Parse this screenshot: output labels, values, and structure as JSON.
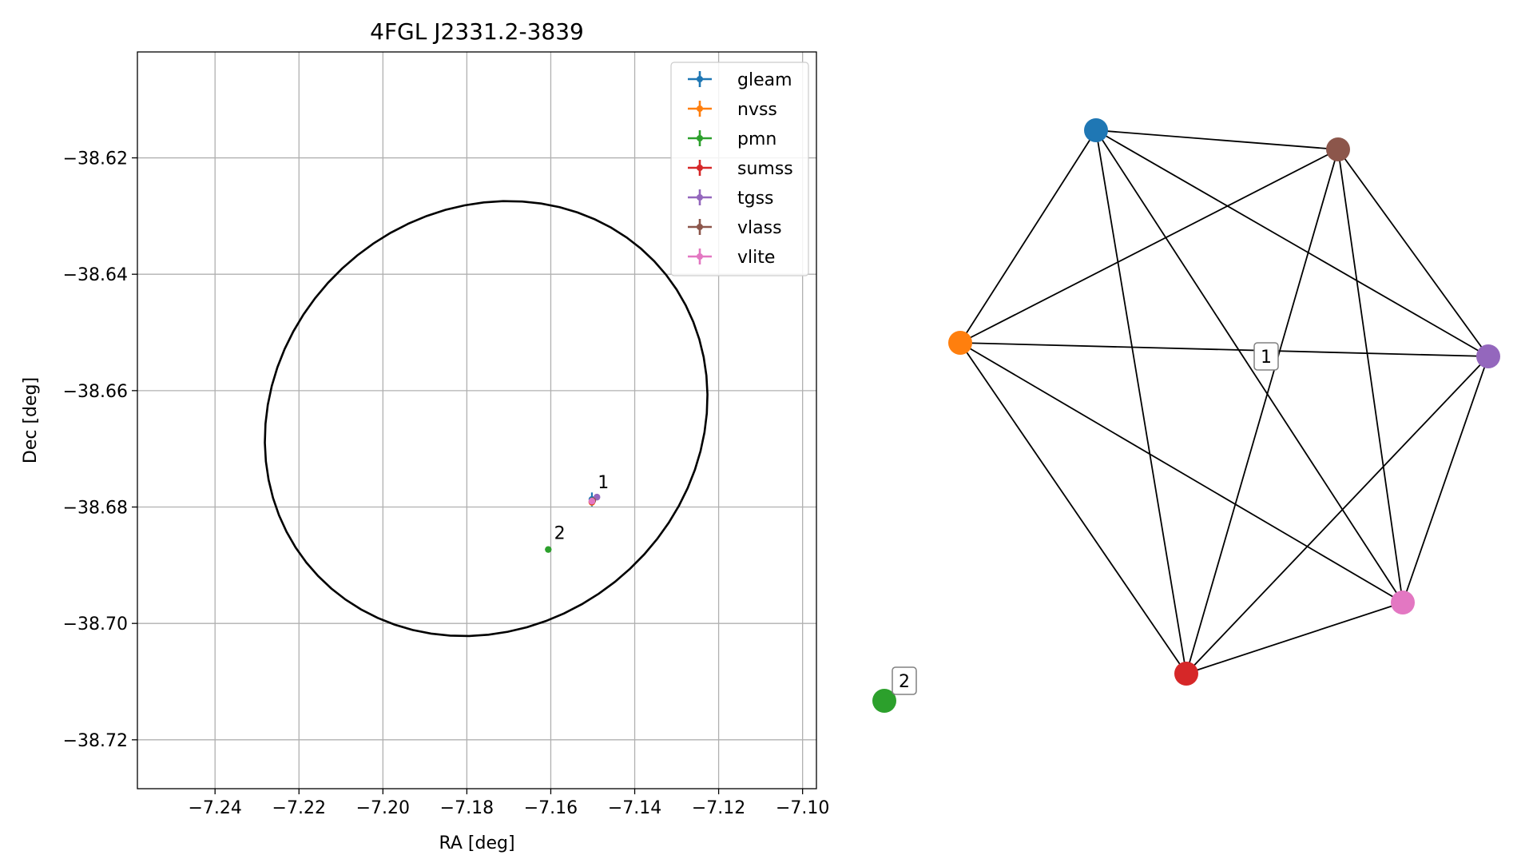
{
  "chart_data": [
    {
      "type": "scatter",
      "title": "4FGL J2331.2-3839",
      "xlabel": "RA [deg]",
      "ylabel": "Dec [deg]",
      "xlim": [
        -7.2585,
        -7.0967
      ],
      "ylim": [
        -38.7284,
        -38.6018
      ],
      "xticks": [
        -7.24,
        -7.22,
        -7.2,
        -7.18,
        -7.16,
        -7.14,
        -7.12,
        -7.1
      ],
      "xtick_labels": [
        "−7.24",
        "−7.22",
        "−7.20",
        "−7.18",
        "−7.16",
        "−7.14",
        "−7.12",
        "−7.10"
      ],
      "yticks": [
        -38.62,
        -38.64,
        -38.66,
        -38.68,
        -38.7,
        -38.72
      ],
      "ytick_labels": [
        "−38.62",
        "−38.64",
        "−38.66",
        "−38.68",
        "−38.70",
        "−38.72"
      ],
      "grid": true,
      "legend_position": "top-right",
      "ellipse": {
        "center": [
          -7.1754,
          -38.6648
        ],
        "semi_axes": [
          0.053,
          0.037
        ],
        "angle_deg": 8
      },
      "series": [
        {
          "name": "gleam",
          "color": "#1f77b4",
          "x": [
            -7.1502
          ],
          "y": [
            -38.6787
          ],
          "xerr": [
            0.0
          ],
          "yerr": [
            0.0012
          ]
        },
        {
          "name": "nvss",
          "color": "#ff7f0e",
          "x": [
            -7.1502
          ],
          "y": [
            -38.6792
          ],
          "xerr": [
            0.0003
          ],
          "yerr": [
            0.0003
          ]
        },
        {
          "name": "pmn",
          "color": "#2ca02c",
          "x": [
            -7.1606
          ],
          "y": [
            -38.6873
          ],
          "xerr": [
            0.0
          ],
          "yerr": [
            0.0
          ]
        },
        {
          "name": "sumss",
          "color": "#d62728",
          "x": [
            -7.1502
          ],
          "y": [
            -38.6791
          ],
          "xerr": [
            0.0003
          ],
          "yerr": [
            0.0003
          ]
        },
        {
          "name": "tgss",
          "color": "#9467bd",
          "x": [
            -7.149
          ],
          "y": [
            -38.6783
          ],
          "xerr": [
            0.0004
          ],
          "yerr": [
            0.0004
          ]
        },
        {
          "name": "vlass",
          "color": "#8c564b",
          "x": [
            -7.15
          ],
          "y": [
            -38.6789
          ],
          "xerr": [
            0.0001
          ],
          "yerr": [
            0.0001
          ]
        },
        {
          "name": "vlite",
          "color": "#e377c2",
          "x": [
            -7.1502
          ],
          "y": [
            -38.679
          ],
          "xerr": [
            0.0005
          ],
          "yerr": [
            0.0005
          ]
        }
      ],
      "annotations": [
        {
          "text": "1",
          "x": -7.1488,
          "y": -38.6768
        },
        {
          "text": "2",
          "x": -7.1592,
          "y": -38.6855
        }
      ]
    },
    {
      "type": "network",
      "nodes": [
        {
          "id": "gleam",
          "color": "#1f77b4"
        },
        {
          "id": "vlass",
          "color": "#8c564b"
        },
        {
          "id": "nvss",
          "color": "#ff7f0e"
        },
        {
          "id": "tgss",
          "color": "#9467bd"
        },
        {
          "id": "vlite",
          "color": "#e377c2"
        },
        {
          "id": "sumss",
          "color": "#d62728"
        },
        {
          "id": "pmn",
          "color": "#2ca02c"
        }
      ],
      "edges": [
        [
          "gleam",
          "vlass"
        ],
        [
          "gleam",
          "nvss"
        ],
        [
          "gleam",
          "tgss"
        ],
        [
          "gleam",
          "vlite"
        ],
        [
          "gleam",
          "sumss"
        ],
        [
          "vlass",
          "nvss"
        ],
        [
          "vlass",
          "tgss"
        ],
        [
          "vlass",
          "vlite"
        ],
        [
          "vlass",
          "sumss"
        ],
        [
          "nvss",
          "tgss"
        ],
        [
          "nvss",
          "vlite"
        ],
        [
          "nvss",
          "sumss"
        ],
        [
          "tgss",
          "vlite"
        ],
        [
          "tgss",
          "sumss"
        ],
        [
          "vlite",
          "sumss"
        ]
      ],
      "group_labels": [
        {
          "text": "1",
          "group": [
            "gleam",
            "vlass",
            "nvss",
            "tgss",
            "vlite",
            "sumss"
          ]
        },
        {
          "text": "2",
          "group": [
            "pmn"
          ]
        }
      ]
    }
  ]
}
